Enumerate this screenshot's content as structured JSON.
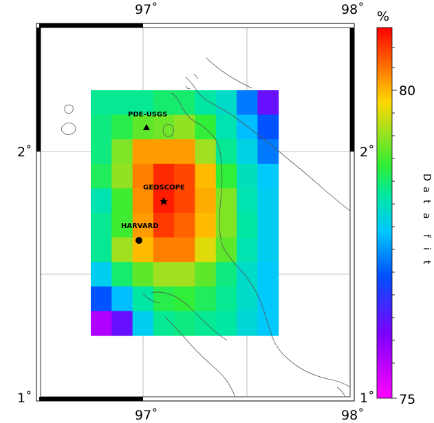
{
  "map": {
    "lon_ticks": [
      "97˚",
      "98˚"
    ],
    "lat_ticks": [
      "2˚",
      "1˚"
    ],
    "lon_range": [
      96.5,
      98.0
    ],
    "lat_range": [
      1.0,
      2.5
    ],
    "stations": [
      {
        "id": "pde",
        "label": "PDE-USGS",
        "symbol": "triangle",
        "lon": 97.02,
        "lat": 2.12
      },
      {
        "id": "geoscope",
        "label": "GEOSCOPE",
        "symbol": "star",
        "lon": 97.1,
        "lat": 1.8
      },
      {
        "id": "harvard",
        "label": "HARVARD",
        "symbol": "circle",
        "lon": 96.98,
        "lat": 1.66
      }
    ]
  },
  "colorbar": {
    "unit": "%",
    "min_label": "75",
    "mid_label": "80",
    "title": "Data fit",
    "range": [
      75,
      82.5
    ],
    "mid_value": 80
  },
  "grid_fit": {
    "columns": 9,
    "rows": 10,
    "values": [
      [
        79.2,
        79.2,
        79.2,
        79.4,
        79.4,
        79.1,
        78.8,
        77.8,
        76.5
      ],
      [
        79.3,
        79.6,
        80.0,
        80.1,
        80.3,
        79.7,
        79.0,
        78.3,
        77.5
      ],
      [
        79.3,
        80.2,
        81.4,
        81.4,
        81.4,
        80.4,
        79.2,
        78.6,
        77.8
      ],
      [
        79.5,
        80.3,
        81.6,
        82.2,
        82.0,
        81.2,
        79.7,
        78.9,
        78.4
      ],
      [
        79.0,
        79.8,
        81.5,
        82.3,
        82.0,
        81.3,
        80.2,
        79.0,
        78.5
      ],
      [
        79.2,
        79.8,
        81.4,
        82.1,
        81.8,
        81.2,
        80.2,
        79.1,
        78.5
      ],
      [
        79.2,
        80.4,
        81.2,
        81.6,
        81.6,
        80.8,
        80.0,
        79.0,
        78.5
      ],
      [
        78.5,
        79.4,
        80.0,
        80.4,
        80.4,
        80.0,
        79.3,
        78.8,
        78.4
      ],
      [
        77.5,
        78.3,
        79.1,
        79.6,
        79.7,
        79.5,
        79.2,
        78.8,
        78.4
      ],
      [
        75.8,
        76.5,
        78.5,
        79.2,
        79.3,
        79.2,
        79.1,
        78.7,
        78.4
      ]
    ]
  }
}
